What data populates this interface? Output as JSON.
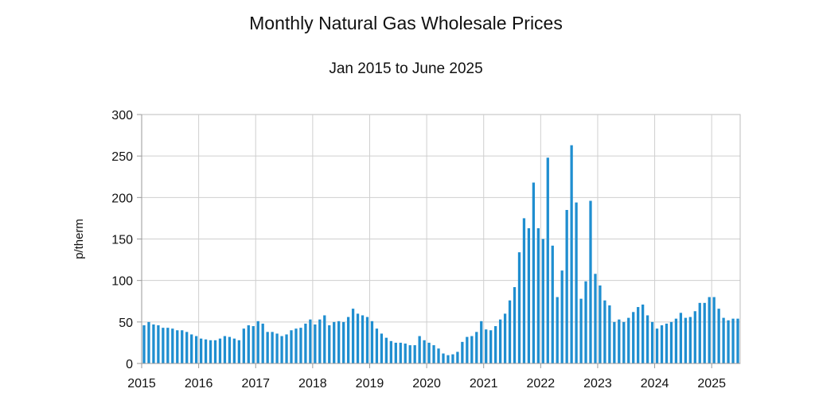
{
  "chart_data": {
    "type": "bar",
    "title": "Monthly Natural Gas Wholesale Prices",
    "subtitle": "Jan 2015 to June 2025",
    "xlabel": "",
    "ylabel": "p/therm",
    "ylim": [
      0,
      300
    ],
    "yticks": [
      "0",
      "50",
      "100",
      "150",
      "200",
      "250",
      "300"
    ],
    "x_tick_labels": [
      "2015",
      "2016",
      "2017",
      "2018",
      "2019",
      "2020",
      "2021",
      "2022",
      "2023",
      "2024",
      "2025"
    ],
    "grid": true,
    "legend": "none",
    "bar_color": "#1f8ed0",
    "start": "2015-01",
    "end": "2025-06",
    "values": [
      46,
      50,
      47,
      46,
      43,
      43,
      42,
      40,
      40,
      38,
      35,
      33,
      30,
      29,
      28,
      28,
      30,
      33,
      32,
      30,
      28,
      42,
      46,
      45,
      51,
      48,
      38,
      38,
      36,
      33,
      35,
      40,
      42,
      43,
      48,
      53,
      47,
      53,
      58,
      46,
      50,
      51,
      50,
      56,
      66,
      60,
      58,
      56,
      51,
      42,
      36,
      31,
      27,
      25,
      25,
      24,
      22,
      22,
      33,
      28,
      25,
      22,
      18,
      12,
      10,
      11,
      14,
      26,
      32,
      33,
      38,
      51,
      41,
      40,
      45,
      53,
      60,
      76,
      92,
      134,
      175,
      163,
      218,
      163,
      150,
      248,
      142,
      80,
      112,
      185,
      263,
      194,
      78,
      99,
      196,
      108,
      94,
      76,
      70,
      50,
      53,
      50,
      55,
      62,
      68,
      71,
      58,
      50,
      42,
      46,
      48,
      50,
      54,
      61,
      55,
      56,
      63,
      73,
      73,
      80,
      80,
      66,
      55,
      52,
      54,
      54
    ]
  }
}
